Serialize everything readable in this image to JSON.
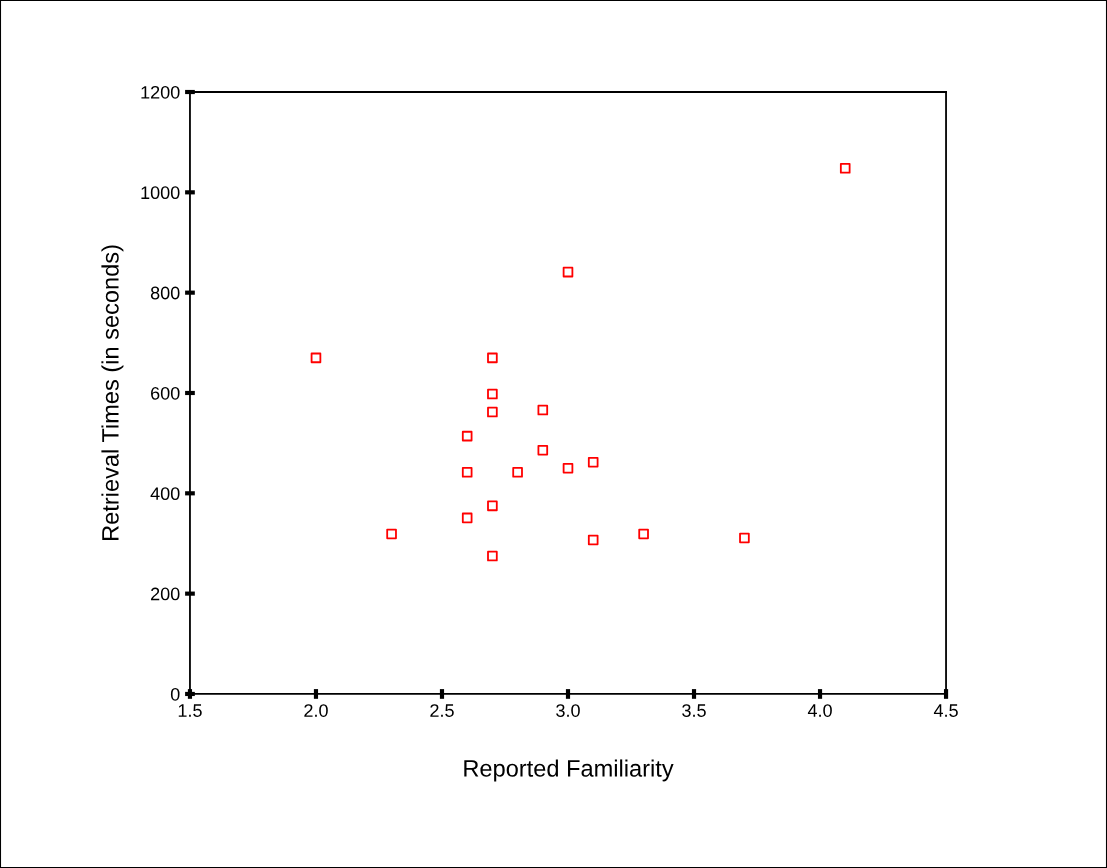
{
  "chart_data": {
    "type": "scatter",
    "xlabel": "Reported Familiarity",
    "ylabel": "Retrieval Times (in seconds)",
    "x": [
      2.0,
      2.3,
      2.6,
      2.6,
      2.6,
      2.7,
      2.7,
      2.7,
      2.7,
      2.7,
      2.8,
      2.9,
      2.9,
      3.0,
      3.0,
      3.1,
      3.1,
      3.3,
      3.7,
      4.1
    ],
    "values": [
      670,
      319,
      514,
      442,
      351,
      670,
      598,
      562,
      375,
      275,
      442,
      566,
      486,
      841,
      450,
      462,
      307,
      319,
      311,
      1048
    ],
    "color": "#ff0000",
    "marker": "square",
    "grid": false,
    "xlim": [
      1.5,
      4.5
    ],
    "xticks": [
      {
        "value": 1.5,
        "label": "1.5"
      },
      {
        "value": 2.0,
        "label": "2.0"
      },
      {
        "value": 2.5,
        "label": "2.5"
      },
      {
        "value": 3.0,
        "label": "3.0"
      },
      {
        "value": 3.5,
        "label": "3.5"
      },
      {
        "value": 4.0,
        "label": "4.0"
      },
      {
        "value": 4.5,
        "label": "4.5"
      }
    ],
    "ylim": [
      0,
      1200
    ],
    "yticks": [
      0,
      200,
      400,
      600,
      800,
      1000,
      1200
    ]
  }
}
